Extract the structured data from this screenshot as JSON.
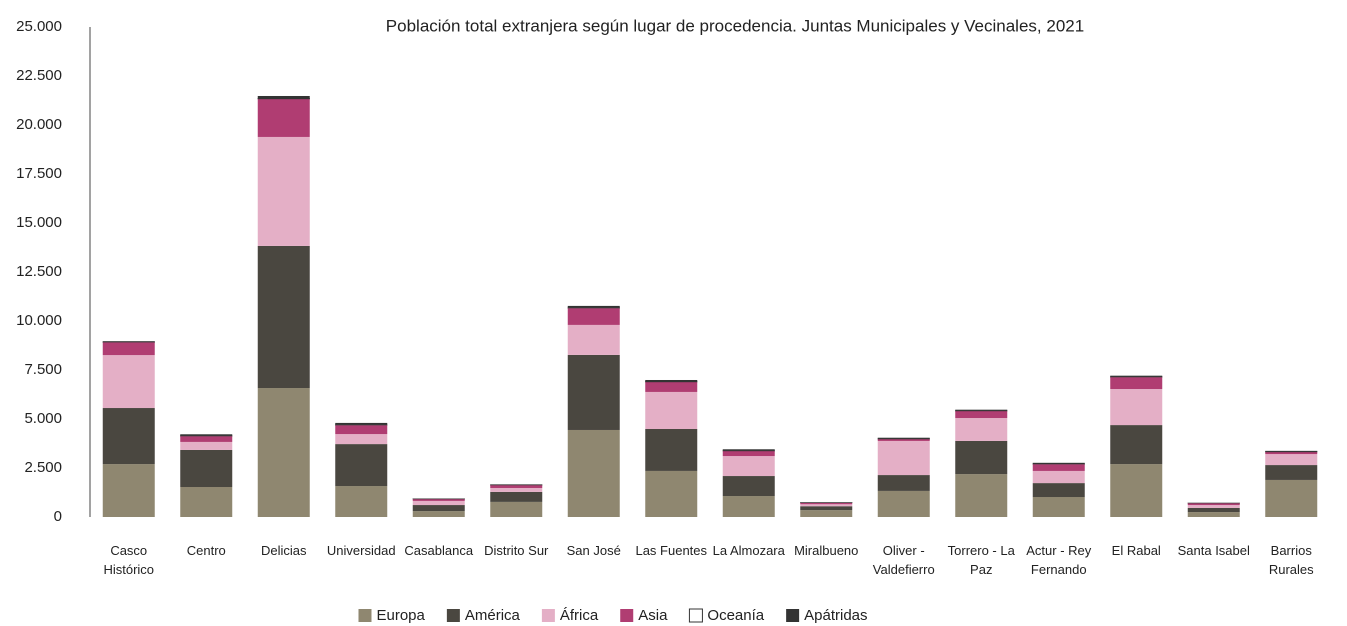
{
  "chart_data": {
    "type": "stacked_bar",
    "title": "Población total extranjera según lugar de procedencia. Juntas Municipales y Vecinales, 2021",
    "categories": [
      "Casco Histórico",
      "Centro",
      "Delicias",
      "Universidad",
      "Casablanca",
      "Distrito Sur",
      "San José",
      "Las Fuentes",
      "La Almozara",
      "Miralbueno",
      "Oliver - Valdefierro",
      "Torrero - La Paz",
      "Actur - Rey Fernando",
      "El Rabal",
      "Santa Isabel",
      "Barrios Rurales"
    ],
    "series": [
      {
        "name": "Europa",
        "color": "#8f8770",
        "values": [
          2700,
          1530,
          6580,
          1580,
          300,
          770,
          4440,
          2350,
          1070,
          350,
          1330,
          2190,
          1020,
          2700,
          250,
          1890
        ]
      },
      {
        "name": "América",
        "color": "#4a4740",
        "values": [
          2860,
          1890,
          7250,
          2140,
          310,
          510,
          3830,
          2140,
          1020,
          200,
          810,
          1690,
          710,
          1990,
          210,
          760
        ]
      },
      {
        "name": "África",
        "color": "#e4afc6",
        "values": [
          2700,
          410,
          5560,
          510,
          210,
          200,
          1530,
          1890,
          1020,
          100,
          1740,
          1170,
          620,
          1840,
          150,
          560
        ]
      },
      {
        "name": "Asia",
        "color": "#b03d72",
        "values": [
          660,
          300,
          1940,
          460,
          100,
          150,
          860,
          510,
          260,
          80,
          100,
          360,
          350,
          610,
          100,
          110
        ]
      },
      {
        "name": "Oceanía",
        "color": "#ffffff",
        "values": [
          10,
          10,
          20,
          10,
          5,
          5,
          10,
          10,
          5,
          2,
          5,
          5,
          5,
          10,
          2,
          5
        ]
      },
      {
        "name": "Apátridas",
        "color": "#333333",
        "values": [
          40,
          80,
          130,
          100,
          20,
          30,
          100,
          90,
          80,
          20,
          60,
          60,
          60,
          60,
          10,
          50
        ]
      }
    ],
    "ylim": [
      0,
      25000
    ],
    "yticks": [
      0,
      {
        "value": 2500,
        "label": "2.500"
      },
      {
        "value": 5000,
        "label": "5.000"
      },
      {
        "value": 7500,
        "label": "7.500"
      },
      {
        "value": 10000,
        "label": "10.000"
      },
      {
        "value": 12500,
        "label": "12.500"
      },
      {
        "value": 15000,
        "label": "15.000"
      },
      {
        "value": 17500,
        "label": "17.500"
      },
      {
        "value": 20000,
        "label": "20.000"
      },
      {
        "value": 22500,
        "label": "22.500"
      },
      {
        "value": 25000,
        "label": "25.000"
      }
    ],
    "grid": false,
    "legend": "bottom"
  }
}
